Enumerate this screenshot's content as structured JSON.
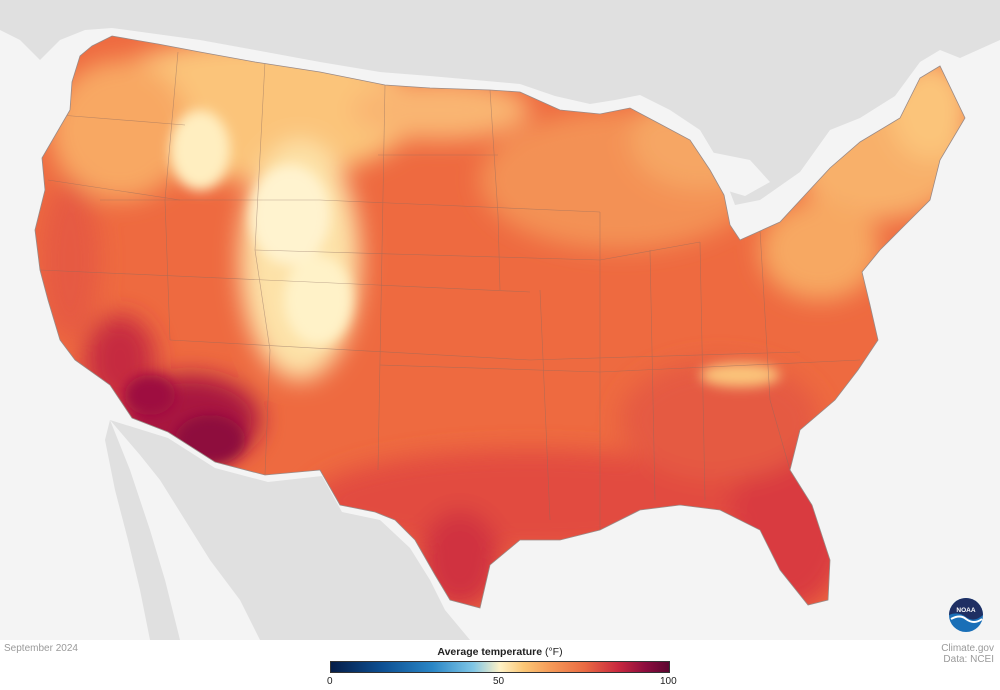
{
  "map": {
    "date_label": "September 2024",
    "legend": {
      "title_bold": "Average temperature",
      "title_unit": "(°F)",
      "ticks": [
        "0",
        "50",
        "100"
      ],
      "range": [
        0,
        100
      ]
    },
    "credits": {
      "line1": "Climate.gov",
      "line2": "Data: NCEI"
    },
    "logo_text": "NOAA",
    "colors": {
      "ocean": "#f4f4f4",
      "neighbor_land": "#e0e0e0",
      "hot": "#c01d3d",
      "warm": "#ee6a40",
      "mild": "#fbc47a",
      "cool": "#fff2c8"
    }
  }
}
